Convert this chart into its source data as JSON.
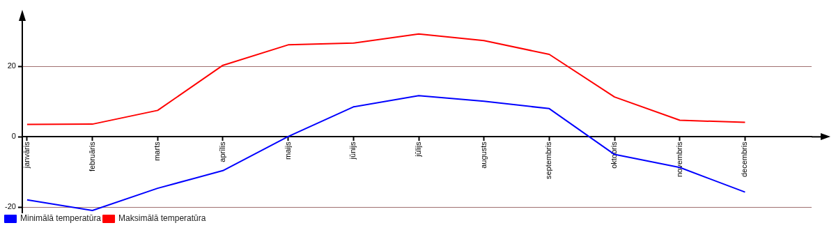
{
  "chart_data": {
    "type": "line",
    "categories": [
      "janvāris",
      "februāris",
      "marts",
      "aprīlis",
      "maijs",
      "jūnijs",
      "jūlijs",
      "augusts",
      "septembris",
      "oktobris",
      "novembris",
      "decembris"
    ],
    "series": [
      {
        "name": "Minimālā temperatūra",
        "color": "#0000ff",
        "values": [
          -17.9,
          -20.9,
          -14.6,
          -9.6,
          0.1,
          8.5,
          11.7,
          10.1,
          8.0,
          -5.0,
          -8.7,
          -15.7
        ]
      },
      {
        "name": "Maksimālā temperatūra",
        "color": "#ff0000",
        "values": [
          3.5,
          3.6,
          7.5,
          20.3,
          26.1,
          26.6,
          29.2,
          27.3,
          23.4,
          11.3,
          4.7,
          4.1
        ]
      }
    ],
    "ylim": [
      -21.5,
      32.5
    ],
    "yticks": [
      -20,
      0,
      20
    ],
    "grid": "y",
    "legend": "bottom left",
    "marker": "none",
    "line_style": "solid"
  }
}
